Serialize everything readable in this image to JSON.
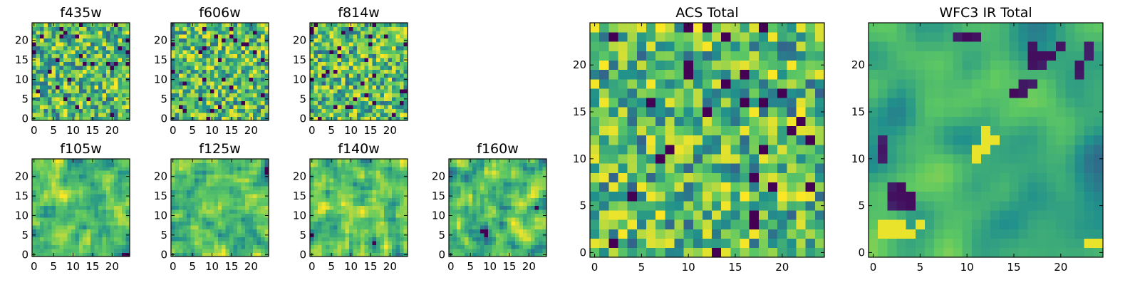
{
  "chart_data": [
    {
      "type": "heatmap",
      "title": "f435w",
      "grid_size": 25,
      "x_ticks": [
        "0",
        "5",
        "10",
        "15",
        "20"
      ],
      "y_ticks": [
        "0",
        "5",
        "10",
        "15",
        "20"
      ],
      "xlim": [
        0,
        25
      ],
      "ylim": [
        0,
        25
      ],
      "colormap": "viridis",
      "texture": "noisy",
      "seed": 11
    },
    {
      "type": "heatmap",
      "title": "f606w",
      "grid_size": 25,
      "x_ticks": [
        "0",
        "5",
        "10",
        "15",
        "20"
      ],
      "y_ticks": [
        "0",
        "5",
        "10",
        "15",
        "20"
      ],
      "xlim": [
        0,
        25
      ],
      "ylim": [
        0,
        25
      ],
      "colormap": "viridis",
      "texture": "noisy",
      "seed": 23
    },
    {
      "type": "heatmap",
      "title": "f814w",
      "grid_size": 25,
      "x_ticks": [
        "0",
        "5",
        "10",
        "15",
        "20"
      ],
      "y_ticks": [
        "0",
        "5",
        "10",
        "15",
        "20"
      ],
      "xlim": [
        0,
        25
      ],
      "ylim": [
        0,
        25
      ],
      "colormap": "viridis",
      "texture": "noisy",
      "seed": 37
    },
    {
      "type": "heatmap",
      "title": "f105w",
      "grid_size": 25,
      "x_ticks": [
        "0",
        "5",
        "10",
        "15",
        "20"
      ],
      "y_ticks": [
        "0",
        "5",
        "10",
        "15",
        "20"
      ],
      "xlim": [
        0,
        25
      ],
      "ylim": [
        0,
        25
      ],
      "colormap": "viridis",
      "texture": "blotchy",
      "seed": 41
    },
    {
      "type": "heatmap",
      "title": "f125w",
      "grid_size": 25,
      "x_ticks": [
        "0",
        "5",
        "10",
        "15",
        "20"
      ],
      "y_ticks": [
        "0",
        "5",
        "10",
        "15",
        "20"
      ],
      "xlim": [
        0,
        25
      ],
      "ylim": [
        0,
        25
      ],
      "colormap": "viridis",
      "texture": "blotchy",
      "seed": 53
    },
    {
      "type": "heatmap",
      "title": "f140w",
      "grid_size": 25,
      "x_ticks": [
        "0",
        "5",
        "10",
        "15",
        "20"
      ],
      "y_ticks": [
        "0",
        "5",
        "10",
        "15",
        "20"
      ],
      "xlim": [
        0,
        25
      ],
      "ylim": [
        0,
        25
      ],
      "colormap": "viridis",
      "texture": "blotchy",
      "seed": 67
    },
    {
      "type": "heatmap",
      "title": "f160w",
      "grid_size": 25,
      "x_ticks": [
        "0",
        "5",
        "10",
        "15",
        "20"
      ],
      "y_ticks": [
        "0",
        "5",
        "10",
        "15",
        "20"
      ],
      "xlim": [
        0,
        25
      ],
      "ylim": [
        0,
        25
      ],
      "colormap": "viridis",
      "texture": "blotchy",
      "seed": 79
    },
    {
      "type": "heatmap",
      "title": "ACS Total",
      "grid_size": 25,
      "x_ticks": [
        "0",
        "5",
        "10",
        "15",
        "20"
      ],
      "y_ticks": [
        "0",
        "5",
        "10",
        "15",
        "20"
      ],
      "xlim": [
        0,
        25
      ],
      "ylim": [
        0,
        25
      ],
      "colormap": "viridis",
      "texture": "noisy",
      "seed": 97
    },
    {
      "type": "heatmap",
      "title": "WFC3 IR Total",
      "grid_size": 25,
      "x_ticks": [
        "0",
        "5",
        "10",
        "15",
        "20"
      ],
      "y_ticks": [
        "0",
        "5",
        "10",
        "15",
        "20"
      ],
      "xlim": [
        0,
        25
      ],
      "ylim": [
        0,
        25
      ],
      "colormap": "viridis",
      "texture": "smooth",
      "seed": 113,
      "dark_cells": [
        [
          1,
          10
        ],
        [
          1,
          11
        ],
        [
          1,
          12
        ],
        [
          2,
          5
        ],
        [
          2,
          6
        ],
        [
          2,
          7
        ],
        [
          3,
          5
        ],
        [
          3,
          6
        ],
        [
          3,
          7
        ],
        [
          4,
          5
        ],
        [
          4,
          6
        ],
        [
          9,
          23
        ],
        [
          10,
          23
        ],
        [
          11,
          23
        ],
        [
          15,
          17
        ],
        [
          16,
          17
        ],
        [
          16,
          18
        ],
        [
          17,
          18
        ],
        [
          17,
          20
        ],
        [
          17,
          21
        ],
        [
          17,
          22
        ],
        [
          18,
          20
        ],
        [
          18,
          21
        ],
        [
          19,
          21
        ],
        [
          20,
          22
        ],
        [
          22,
          19
        ],
        [
          22,
          20
        ],
        [
          23,
          21
        ],
        [
          23,
          22
        ]
      ],
      "bright_cells": [
        [
          1,
          2
        ],
        [
          1,
          3
        ],
        [
          2,
          2
        ],
        [
          2,
          3
        ],
        [
          3,
          2
        ],
        [
          3,
          3
        ],
        [
          4,
          2
        ],
        [
          5,
          3
        ],
        [
          11,
          11
        ],
        [
          12,
          11
        ],
        [
          12,
          12
        ],
        [
          13,
          12
        ],
        [
          11,
          10
        ],
        [
          12,
          13
        ],
        [
          24,
          1
        ],
        [
          23,
          1
        ]
      ]
    }
  ],
  "colors": {
    "viridis": [
      "#440154",
      "#3b528b",
      "#21918c",
      "#5ec962",
      "#fde725"
    ]
  }
}
